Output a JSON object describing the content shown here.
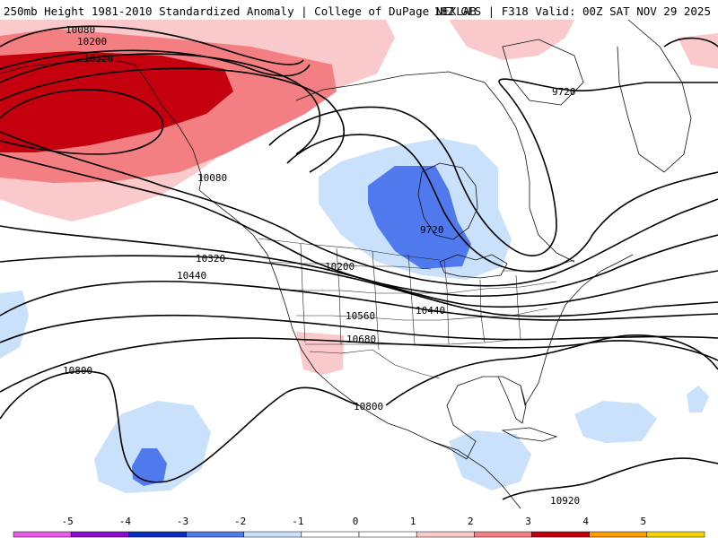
{
  "header": {
    "left_title": "250mb Height 1981-2010 Standardized Anomaly | College of DuPage NEXLAB",
    "right_title": "18Z GFS | F318 Valid: 00Z SAT NOV 29 2025"
  },
  "colors": {
    "background": "#ffffff",
    "contour": "#000000",
    "pos1": "#f9c9cb",
    "pos2": "#f47f82",
    "pos3": "#c4000e",
    "neg1": "#c9e1fb",
    "neg2": "#4f79ed"
  },
  "contour_labels": [
    {
      "id": "10080-nw",
      "text": "10080"
    },
    {
      "id": "10200-nw",
      "text": "10200"
    },
    {
      "id": "10320-nw",
      "text": "10320"
    },
    {
      "id": "9720-ne",
      "text": "9720"
    },
    {
      "id": "10080-w",
      "text": "10080"
    },
    {
      "id": "9720-c",
      "text": "9720"
    },
    {
      "id": "10320-w",
      "text": "10320"
    },
    {
      "id": "10200-c",
      "text": "10200"
    },
    {
      "id": "10440-w",
      "text": "10440"
    },
    {
      "id": "10440-c",
      "text": "10440"
    },
    {
      "id": "10560-c",
      "text": "10560"
    },
    {
      "id": "10680-c",
      "text": "10680"
    },
    {
      "id": "10800-w",
      "text": "10800"
    },
    {
      "id": "10800-c",
      "text": "10800"
    },
    {
      "id": "10920-se",
      "text": "10920"
    }
  ],
  "colorbar": {
    "ticks": [
      "-5",
      "-4",
      "-3",
      "-2",
      "-1",
      "0",
      "1",
      "2",
      "3",
      "4",
      "5"
    ],
    "colors": [
      "#ea5ce8",
      "#8a0fd0",
      "#0a2fbf",
      "#4f79ed",
      "#c9e1fb",
      "#ffffff",
      "#ffffff",
      "#f9c9cb",
      "#f47f82",
      "#c4000e",
      "#ff9c00",
      "#f5d600"
    ]
  }
}
